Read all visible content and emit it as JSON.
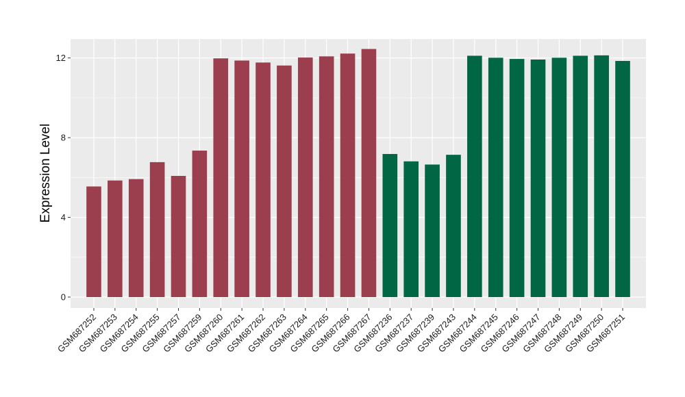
{
  "chart_data": {
    "type": "bar",
    "title": "",
    "xlabel": "",
    "ylabel": "Expression Level",
    "ylim": [
      -0.55,
      12.95
    ],
    "yticks": [
      0,
      4,
      8,
      12
    ],
    "grid": true,
    "legend": "none",
    "panel_color": "#ebebeb",
    "grid_color": "#ffffff",
    "categories": [
      "GSM687252",
      "GSM687253",
      "GSM687254",
      "GSM687255",
      "GSM687257",
      "GSM687259",
      "GSM687260",
      "GSM687261",
      "GSM687262",
      "GSM687263",
      "GSM687264",
      "GSM687265",
      "GSM687266",
      "GSM687267",
      "GSM687236",
      "GSM687237",
      "GSM687239",
      "GSM687243",
      "GSM687244",
      "GSM687245",
      "GSM687246",
      "GSM687247",
      "GSM687248",
      "GSM687249",
      "GSM687250",
      "GSM687251"
    ],
    "values": [
      5.55,
      5.85,
      5.92,
      6.77,
      6.08,
      7.35,
      11.98,
      11.87,
      11.77,
      11.62,
      12.02,
      12.08,
      12.22,
      12.45,
      7.18,
      6.81,
      6.65,
      7.14,
      12.11,
      12.01,
      11.95,
      11.92,
      12.01,
      12.11,
      12.13,
      11.85
    ],
    "bar_colors": [
      "#9b3f4f",
      "#9b3f4f",
      "#9b3f4f",
      "#9b3f4f",
      "#9b3f4f",
      "#9b3f4f",
      "#9b3f4f",
      "#9b3f4f",
      "#9b3f4f",
      "#9b3f4f",
      "#9b3f4f",
      "#9b3f4f",
      "#9b3f4f",
      "#9b3f4f",
      "#006644",
      "#006644",
      "#006644",
      "#006644",
      "#006644",
      "#006644",
      "#006644",
      "#006644",
      "#006644",
      "#006644",
      "#006644",
      "#006644"
    ]
  }
}
